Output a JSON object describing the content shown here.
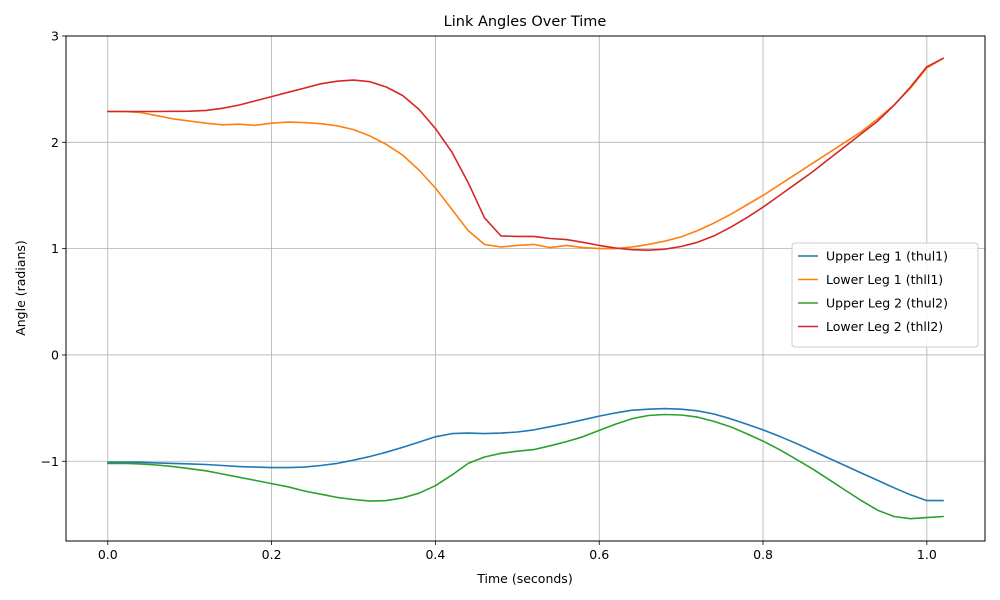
{
  "chart_data": {
    "type": "line",
    "title": "Link Angles Over Time",
    "xlabel": "Time (seconds)",
    "ylabel": "Angle (radians)",
    "xlim": [
      -0.051,
      1.071
    ],
    "ylim": [
      -1.75,
      3.0
    ],
    "xticks": [
      0.0,
      0.2,
      0.4,
      0.6,
      0.8,
      1.0
    ],
    "xtick_labels": [
      "0.0",
      "0.2",
      "0.4",
      "0.6",
      "0.8",
      "1.0"
    ],
    "yticks": [
      -1,
      0,
      1,
      2,
      3
    ],
    "ytick_labels": [
      "−1",
      "0",
      "1",
      "2",
      "3"
    ],
    "grid": true,
    "legend_position": "center-right",
    "x": [
      0.0,
      0.02,
      0.04,
      0.06,
      0.08,
      0.1,
      0.12,
      0.14,
      0.16,
      0.18,
      0.2,
      0.22,
      0.24,
      0.26,
      0.28,
      0.3,
      0.32,
      0.34,
      0.36,
      0.38,
      0.4,
      0.42,
      0.44,
      0.46,
      0.48,
      0.5,
      0.52,
      0.54,
      0.56,
      0.58,
      0.6,
      0.62,
      0.64,
      0.66,
      0.68,
      0.7,
      0.72,
      0.74,
      0.76,
      0.78,
      0.8,
      0.82,
      0.84,
      0.86,
      0.88,
      0.9,
      0.92,
      0.94,
      0.96,
      0.98,
      1.0,
      1.02
    ],
    "series": [
      {
        "name": "Upper Leg 1 (thul1)",
        "color": "#1f77b4",
        "values": [
          -1.01,
          -1.01,
          -1.01,
          -1.015,
          -1.02,
          -1.025,
          -1.03,
          -1.04,
          -1.05,
          -1.055,
          -1.06,
          -1.06,
          -1.055,
          -1.04,
          -1.02,
          -0.99,
          -0.955,
          -0.915,
          -0.87,
          -0.82,
          -0.77,
          -0.74,
          -0.735,
          -0.74,
          -0.735,
          -0.725,
          -0.705,
          -0.675,
          -0.645,
          -0.61,
          -0.575,
          -0.545,
          -0.52,
          -0.51,
          -0.505,
          -0.51,
          -0.525,
          -0.555,
          -0.6,
          -0.65,
          -0.705,
          -0.765,
          -0.83,
          -0.9,
          -0.97,
          -1.04,
          -1.11,
          -1.18,
          -1.25,
          -1.315,
          -1.37,
          -1.37
        ]
      },
      {
        "name": "Lower Leg 1 (thll1)",
        "color": "#ff7f0e",
        "values": [
          2.29,
          2.29,
          2.28,
          2.25,
          2.22,
          2.2,
          2.18,
          2.165,
          2.17,
          2.16,
          2.18,
          2.19,
          2.185,
          2.175,
          2.155,
          2.12,
          2.06,
          1.98,
          1.88,
          1.74,
          1.57,
          1.37,
          1.17,
          1.04,
          1.015,
          1.03,
          1.04,
          1.01,
          1.03,
          1.01,
          1.0,
          1.0,
          1.015,
          1.04,
          1.07,
          1.11,
          1.17,
          1.24,
          1.32,
          1.41,
          1.5,
          1.6,
          1.7,
          1.8,
          1.9,
          2.0,
          2.1,
          2.22,
          2.35,
          2.51,
          2.7,
          2.79
        ]
      },
      {
        "name": "Upper Leg 2 (thul2)",
        "color": "#2ca02c",
        "values": [
          -1.02,
          -1.02,
          -1.025,
          -1.035,
          -1.05,
          -1.07,
          -1.09,
          -1.12,
          -1.15,
          -1.18,
          -1.21,
          -1.24,
          -1.28,
          -1.31,
          -1.34,
          -1.36,
          -1.375,
          -1.37,
          -1.345,
          -1.3,
          -1.23,
          -1.13,
          -1.02,
          -0.96,
          -0.925,
          -0.905,
          -0.89,
          -0.855,
          -0.815,
          -0.77,
          -0.71,
          -0.65,
          -0.6,
          -0.57,
          -0.56,
          -0.565,
          -0.585,
          -0.625,
          -0.675,
          -0.74,
          -0.81,
          -0.89,
          -0.98,
          -1.07,
          -1.17,
          -1.27,
          -1.37,
          -1.46,
          -1.52,
          -1.54,
          -1.53,
          -1.52
        ]
      },
      {
        "name": "Lower Leg 2 (thll2)",
        "color": "#d62728",
        "values": [
          2.29,
          2.29,
          2.29,
          2.29,
          2.292,
          2.293,
          2.3,
          2.32,
          2.35,
          2.39,
          2.43,
          2.47,
          2.51,
          2.55,
          2.575,
          2.585,
          2.57,
          2.52,
          2.44,
          2.31,
          2.13,
          1.91,
          1.62,
          1.29,
          1.12,
          1.115,
          1.115,
          1.095,
          1.085,
          1.06,
          1.03,
          1.005,
          0.99,
          0.985,
          0.995,
          1.02,
          1.06,
          1.12,
          1.2,
          1.29,
          1.39,
          1.5,
          1.61,
          1.72,
          1.84,
          1.96,
          2.08,
          2.2,
          2.35,
          2.52,
          2.71,
          2.79
        ]
      }
    ]
  }
}
